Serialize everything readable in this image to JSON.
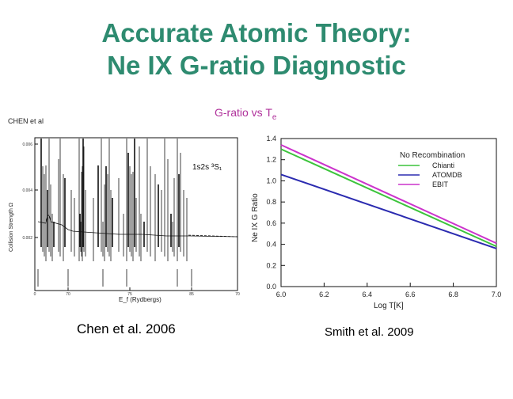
{
  "slide": {
    "title_line1": "Accurate Atomic Theory:",
    "title_line2": "Ne IX G-ratio Diagnostic",
    "subtitle_main": "G-ratio vs T",
    "subtitle_sub": "e",
    "caption_left": "Chen et al. 2006",
    "caption_right": "Smith et al. 2009"
  },
  "left_plot": {
    "header": "CHEN et al",
    "ylabel": "Collision Strength Ω",
    "xlabel": "E_f (Rydbergs)",
    "annotation": "1s2s ³S₁",
    "x_ticks": [
      "0",
      "70",
      "75",
      "85",
      "70"
    ],
    "y_ticks": [
      "0.006",
      "0.004",
      "0.002"
    ]
  },
  "chart_data": {
    "type": "line",
    "title": "",
    "xlabel": "Log T[K]",
    "ylabel": "Ne IX G Ratio",
    "xlim": [
      6.0,
      7.0
    ],
    "ylim": [
      0.0,
      1.4
    ],
    "x_ticks": [
      "6.0",
      "6.2",
      "6.4",
      "6.6",
      "6.8",
      "7.0"
    ],
    "y_ticks": [
      "0.0",
      "0.2",
      "0.4",
      "0.6",
      "0.8",
      "1.0",
      "1.2",
      "1.4"
    ],
    "legend_title": "No Recombination",
    "legend_position": "top-right",
    "x": [
      6.0,
      7.0
    ],
    "series": [
      {
        "name": "Chianti",
        "color": "#3cc43c",
        "values": [
          1.3,
          0.38
        ]
      },
      {
        "name": "ATOMDB",
        "color": "#2b2bb0",
        "values": [
          1.06,
          0.36
        ]
      },
      {
        "name": "EBIT",
        "color": "#cc33cc",
        "values": [
          1.34,
          0.41
        ]
      }
    ]
  }
}
